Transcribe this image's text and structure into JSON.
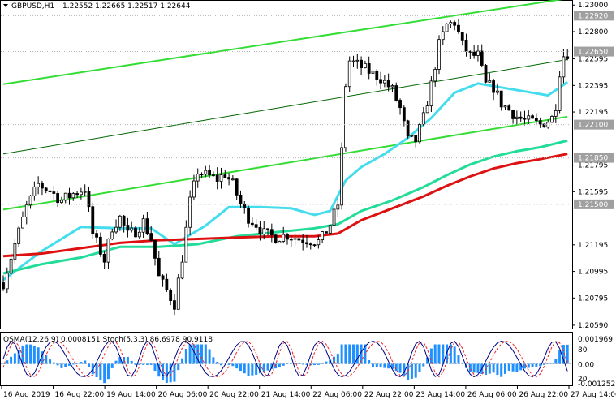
{
  "header": {
    "symbol": "GBPUSD,H1",
    "ohlc": "1.22552 1.22665 1.22517 1.22644"
  },
  "osc_header": "OSMA(12,26,9) 0.0008151  Stoch(5,3,3) 86.6978 90.9118",
  "colors": {
    "candle": "#000000",
    "channel": "#33dd33",
    "midline": "#006600",
    "ema_fast": "#44ddee",
    "ema_mid": "#22dd99",
    "ema_slow": "#dd1111",
    "osma": "#1e90ff",
    "stoch_main": "#000080",
    "stoch_signal": "#ee2222",
    "tag_bg": "#a0a0a0"
  },
  "chart_data": [
    {
      "type": "candlestick",
      "title": "GBPUSD,H1",
      "ylim": [
        1.20565,
        1.23032
      ],
      "y_ticks": [
        "1.23000",
        "1.22800",
        "1.22595",
        "1.22395",
        "1.22195",
        "1.21795",
        "1.21595",
        "1.21195",
        "1.20995",
        "1.20795",
        "1.20590"
      ],
      "price_tags": [
        "1.22920",
        "1.22650",
        "1.22100",
        "1.21850",
        "1.21500"
      ],
      "x_labels": [
        "16 Aug 2019",
        "16 Aug 22:00",
        "19 Aug 14:00",
        "20 Aug 06:00",
        "20 Aug 22:00",
        "21 Aug 14:00",
        "22 Aug 06:00",
        "22 Aug 22:00",
        "23 Aug 14:00",
        "26 Aug 06:00",
        "26 Aug 22:00",
        "27 Aug 14:00"
      ],
      "close_path": [
        [
          0,
          1.2091
        ],
        [
          3,
          1.212
        ],
        [
          6,
          1.2148
        ],
        [
          9,
          1.2165
        ],
        [
          12,
          1.216
        ],
        [
          15,
          1.2153
        ],
        [
          18,
          1.2158
        ],
        [
          21,
          1.2162
        ],
        [
          23,
          1.2128
        ],
        [
          26,
          1.2108
        ],
        [
          28,
          1.2133
        ],
        [
          30,
          1.214
        ],
        [
          32,
          1.2127
        ],
        [
          34,
          1.213
        ],
        [
          36,
          1.2137
        ],
        [
          38,
          1.2124
        ],
        [
          40,
          1.2095
        ],
        [
          42,
          1.2085
        ],
        [
          44,
          1.2075
        ],
        [
          46,
          1.211
        ],
        [
          48,
          1.2152
        ],
        [
          50,
          1.2175
        ],
        [
          52,
          1.2172
        ],
        [
          55,
          1.2169
        ],
        [
          57,
          1.2173
        ],
        [
          59,
          1.2165
        ],
        [
          61,
          1.215
        ],
        [
          63,
          1.214
        ],
        [
          65,
          1.2135
        ],
        [
          67,
          1.2128
        ],
        [
          70,
          1.2125
        ],
        [
          73,
          1.2127
        ],
        [
          76,
          1.2124
        ],
        [
          79,
          1.2123
        ],
        [
          81,
          1.2122
        ],
        [
          82,
          1.2125
        ],
        [
          84,
          1.2135
        ],
        [
          86,
          1.215
        ],
        [
          87,
          1.219
        ],
        [
          88,
          1.224
        ],
        [
          89,
          1.2258
        ],
        [
          91,
          1.2255
        ],
        [
          94,
          1.225
        ],
        [
          97,
          1.2245
        ],
        [
          100,
          1.2236
        ],
        [
          102,
          1.2222
        ],
        [
          104,
          1.2198
        ],
        [
          106,
          1.2198
        ],
        [
          108,
          1.2215
        ],
        [
          110,
          1.224
        ],
        [
          112,
          1.227
        ],
        [
          114,
          1.2285
        ],
        [
          116,
          1.2287
        ],
        [
          118,
          1.227
        ],
        [
          120,
          1.2262
        ],
        [
          122,
          1.2262
        ],
        [
          124,
          1.224
        ],
        [
          126,
          1.2238
        ],
        [
          128,
          1.2226
        ],
        [
          130,
          1.2221
        ],
        [
          132,
          1.2216
        ],
        [
          134,
          1.2213
        ],
        [
          136,
          1.2212
        ],
        [
          138,
          1.221
        ],
        [
          140,
          1.2213
        ],
        [
          141,
          1.2215
        ],
        [
          142,
          1.2225
        ],
        [
          143,
          1.225
        ],
        [
          144,
          1.2262
        ],
        [
          145,
          1.2264
        ]
      ],
      "series": [
        {
          "name": "channel upper",
          "values": [
            [
              0,
              1.22405
            ],
            [
              145,
              1.2305
            ]
          ]
        },
        {
          "name": "channel middle",
          "values": [
            [
              0,
              1.2188
            ],
            [
              145,
              1.2259
            ]
          ]
        },
        {
          "name": "channel lower",
          "values": [
            [
              0,
              1.2146
            ],
            [
              145,
              1.2216
            ]
          ]
        },
        {
          "name": "ema fast",
          "values": [
            [
              0,
              1.2093
            ],
            [
              10,
              1.2115
            ],
            [
              20,
              1.2133
            ],
            [
              30,
              1.2132
            ],
            [
              38,
              1.2132
            ],
            [
              44,
              1.212
            ],
            [
              52,
              1.2134
            ],
            [
              58,
              1.2148
            ],
            [
              66,
              1.2148
            ],
            [
              74,
              1.2147
            ],
            [
              80,
              1.2142
            ],
            [
              84,
              1.2145
            ],
            [
              88,
              1.2168
            ],
            [
              92,
              1.2178
            ],
            [
              98,
              1.2188
            ],
            [
              104,
              1.22
            ],
            [
              110,
              1.2215
            ],
            [
              116,
              1.2234
            ],
            [
              122,
              1.2241
            ],
            [
              128,
              1.2238
            ],
            [
              134,
              1.2235
            ],
            [
              140,
              1.2232
            ],
            [
              145,
              1.2242
            ]
          ]
        },
        {
          "name": "ema mid",
          "values": [
            [
              0,
              1.2098
            ],
            [
              10,
              1.2105
            ],
            [
              20,
              1.211
            ],
            [
              30,
              1.2118
            ],
            [
              40,
              1.2118
            ],
            [
              50,
              1.212
            ],
            [
              60,
              1.2126
            ],
            [
              70,
              1.2129
            ],
            [
              80,
              1.2132
            ],
            [
              86,
              1.2135
            ],
            [
              92,
              1.2145
            ],
            [
              100,
              1.2153
            ],
            [
              108,
              1.2163
            ],
            [
              114,
              1.2172
            ],
            [
              120,
              1.218
            ],
            [
              126,
              1.2186
            ],
            [
              132,
              1.219
            ],
            [
              138,
              1.2193
            ],
            [
              145,
              1.2198
            ]
          ]
        },
        {
          "name": "ema slow",
          "values": [
            [
              0,
              1.2111
            ],
            [
              10,
              1.2113
            ],
            [
              20,
              1.2117
            ],
            [
              30,
              1.2121
            ],
            [
              40,
              1.2123
            ],
            [
              50,
              1.2124
            ],
            [
              60,
              1.2125
            ],
            [
              70,
              1.2126
            ],
            [
              80,
              1.2126
            ],
            [
              86,
              1.2128
            ],
            [
              92,
              1.2138
            ],
            [
              100,
              1.2147
            ],
            [
              108,
              1.2156
            ],
            [
              114,
              1.2164
            ],
            [
              120,
              1.2171
            ],
            [
              126,
              1.2177
            ],
            [
              132,
              1.2181
            ],
            [
              138,
              1.2184
            ],
            [
              145,
              1.2188
            ]
          ]
        }
      ],
      "osc_scale": [
        "0.001969",
        "80",
        "0.00",
        "20",
        "-0.001252"
      ]
    }
  ]
}
